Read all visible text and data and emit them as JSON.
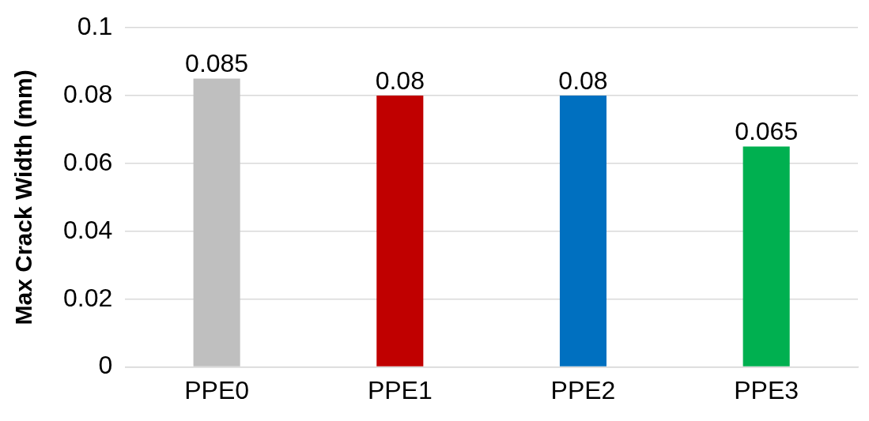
{
  "chart_data": {
    "type": "bar",
    "ylabel": "Max Crack Width (mm)",
    "categories": [
      "PPE0",
      "PPE1",
      "PPE2",
      "PPE3"
    ],
    "values": [
      0.085,
      0.08,
      0.08,
      0.065
    ],
    "colors": [
      "#bfbfbf",
      "#c00000",
      "#0070c0",
      "#00b050"
    ],
    "ylim": [
      0,
      0.1
    ],
    "yticks": [
      0,
      0.02,
      0.04,
      0.06,
      0.08,
      0.1
    ],
    "grid": "y",
    "data_labels": true,
    "legend": false
  }
}
